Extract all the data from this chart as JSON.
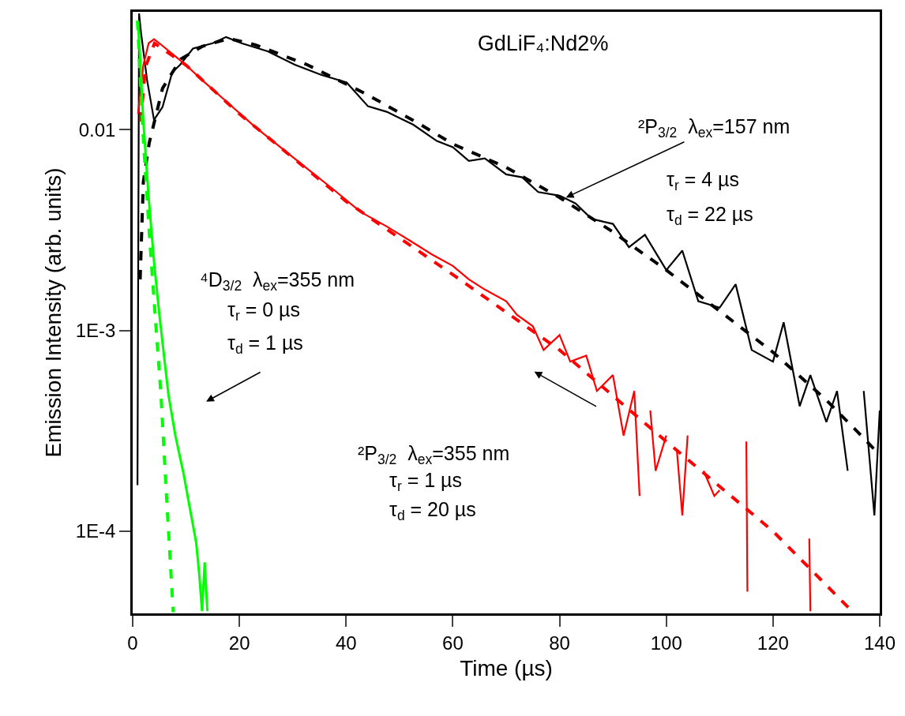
{
  "chart_data": {
    "type": "line",
    "title": "GdLiF₄:Nd2%",
    "xlabel": "Time (µs)",
    "ylabel": "Emission Intensity (arb. units)",
    "log": "y",
    "xlim": [
      0,
      140
    ],
    "xticks": [
      0,
      20,
      40,
      60,
      80,
      100,
      120,
      140
    ],
    "ylim": [
      3.9e-05,
      0.0387
    ],
    "yticks": [
      {
        "value": 0.01,
        "label": "0.01"
      },
      {
        "value": 0.001,
        "label": "1E-3"
      },
      {
        "value": 0.0001,
        "label": "1E-4"
      }
    ],
    "series": [
      {
        "color": "#000000",
        "line_style": "solid",
        "x": [
          0.9,
          1.2,
          1.6,
          2.7,
          4.0,
          5.6,
          7.4,
          8.9,
          11.3,
          15,
          17.5,
          20.4,
          25.3,
          30.4,
          35.3,
          40.1,
          44.1,
          47.6,
          52.6,
          57,
          60,
          63,
          66,
          70,
          73,
          76,
          80,
          83,
          86,
          90,
          93,
          96,
          100,
          103,
          106,
          110,
          113,
          116,
          120,
          122,
          125,
          127,
          130,
          132,
          134,
          135,
          137,
          139,
          140
        ],
        "values": [
          0.00017,
          0.038,
          0.03,
          0.0177,
          0.0112,
          0.013,
          0.0193,
          0.0211,
          0.0254,
          0.027,
          0.029,
          0.027,
          0.0246,
          0.0211,
          0.0188,
          0.0172,
          0.0131,
          0.0123,
          0.0106,
          0.0088,
          0.0082,
          0.007,
          0.0072,
          0.006,
          0.0058,
          0.0049,
          0.0047,
          0.0043,
          0.0036,
          0.0034,
          0.0026,
          0.003,
          0.002,
          0.0025,
          0.0014,
          0.0013,
          0.0017,
          0.0008,
          0.0007,
          0.0011,
          0.00042,
          0.0006,
          0.00035,
          0.0005,
          0.0002,
          null,
          0.0005,
          0.00012,
          0.0004
        ]
      },
      {
        "color": "#000000",
        "line_style": "dashed",
        "x": [
          1.4,
          2.0,
          3.1,
          5.6,
          9,
          13,
          18,
          23,
          32.7,
          43.7,
          54,
          60,
          70,
          80,
          90,
          100,
          110,
          120,
          130,
          136,
          140
        ],
        "values": [
          0.0018,
          0.0055,
          0.0086,
          0.0161,
          0.0225,
          0.026,
          0.0285,
          0.0265,
          0.0211,
          0.0151,
          0.0106,
          0.0085,
          0.0065,
          0.0046,
          0.0031,
          0.002,
          0.00125,
          0.00078,
          0.00045,
          0.00031,
          0.00024
        ]
      },
      {
        "color": "#ff0000",
        "line_style": "solid",
        "x": [
          1,
          2,
          3,
          4,
          5,
          7.5,
          10,
          13,
          18,
          23,
          27.9,
          32.7,
          37.8,
          42.7,
          47.6,
          52,
          56,
          60,
          63,
          66,
          70,
          72,
          75,
          77,
          80,
          82,
          85,
          87,
          90,
          92,
          94,
          95,
          96,
          97,
          98,
          100,
          101,
          102,
          103,
          104,
          105,
          107,
          109,
          110,
          112,
          115,
          115.2,
          120,
          126.8,
          127
        ],
        "values": [
          0.012,
          0.021,
          0.027,
          0.0283,
          0.027,
          0.0238,
          0.021,
          0.0177,
          0.0135,
          0.0103,
          0.0081,
          0.0064,
          0.005,
          0.0039,
          0.0033,
          0.0028,
          0.0024,
          0.0021,
          0.0018,
          0.0016,
          0.0014,
          0.0012,
          0.00105,
          0.0008,
          0.00095,
          0.0007,
          0.00075,
          0.0005,
          0.0006,
          0.0003,
          0.0005,
          0.00015,
          null,
          0.0004,
          0.0002,
          0.0003,
          null,
          0.00025,
          0.00012,
          0.0003,
          null,
          0.0002,
          0.00015,
          0.00016,
          null,
          0.00028,
          5e-05,
          null,
          9.2e-05,
          4e-05
        ]
      },
      {
        "color": "#ff0000",
        "line_style": "dashed",
        "x": [
          1.5,
          2.4,
          4.1,
          10,
          20,
          40,
          60,
          80,
          100,
          120,
          134.8
        ],
        "values": [
          0.011,
          0.0206,
          0.027,
          0.021,
          0.012,
          0.0044,
          0.0019,
          0.0008,
          0.00028,
          0.0001,
          4e-05
        ]
      },
      {
        "color": "#00ff00",
        "line_style": "solid",
        "x": [
          1.0,
          1.5,
          2,
          3,
          4,
          5,
          6.7,
          8,
          9.6,
          10.5,
          11.9,
          12.5,
          13,
          13.5,
          14
        ],
        "values": [
          0.0347,
          0.02,
          0.011,
          0.0046,
          0.0022,
          0.0012,
          0.00048,
          0.0003,
          0.00019,
          0.00014,
          8.8e-05,
          6e-05,
          4e-05,
          7e-05,
          4e-05
        ]
      },
      {
        "color": "#00ff00",
        "line_style": "dashed",
        "x": [
          0.9,
          2,
          3.1,
          4.2,
          5.3,
          6.4,
          7.6
        ],
        "values": [
          0.035,
          0.009,
          0.0031,
          0.0012,
          0.00048,
          0.00014,
          3.95e-05
        ]
      }
    ],
    "annotations": [
      {
        "text": "²P$_{3/2}$  λ$_{ex}$=157 nm",
        "x": 81.2,
        "y": 0.0046
      },
      "τ$_{r}$ = 4 µs",
      "τ$_{d}$ = 22 µs",
      "²P$_{3/2}$  λ$_{ex}$=355 nm",
      "τ$_{r}$ = 1 µs",
      "τ$_{d}$ = 20 µs",
      "⁴D$_{3/2}$  λ$_{ex}$=355 nm",
      "τ$_{r}$ = 0 µs",
      "τ$_{d}$ = 1 µs"
    ]
  }
}
